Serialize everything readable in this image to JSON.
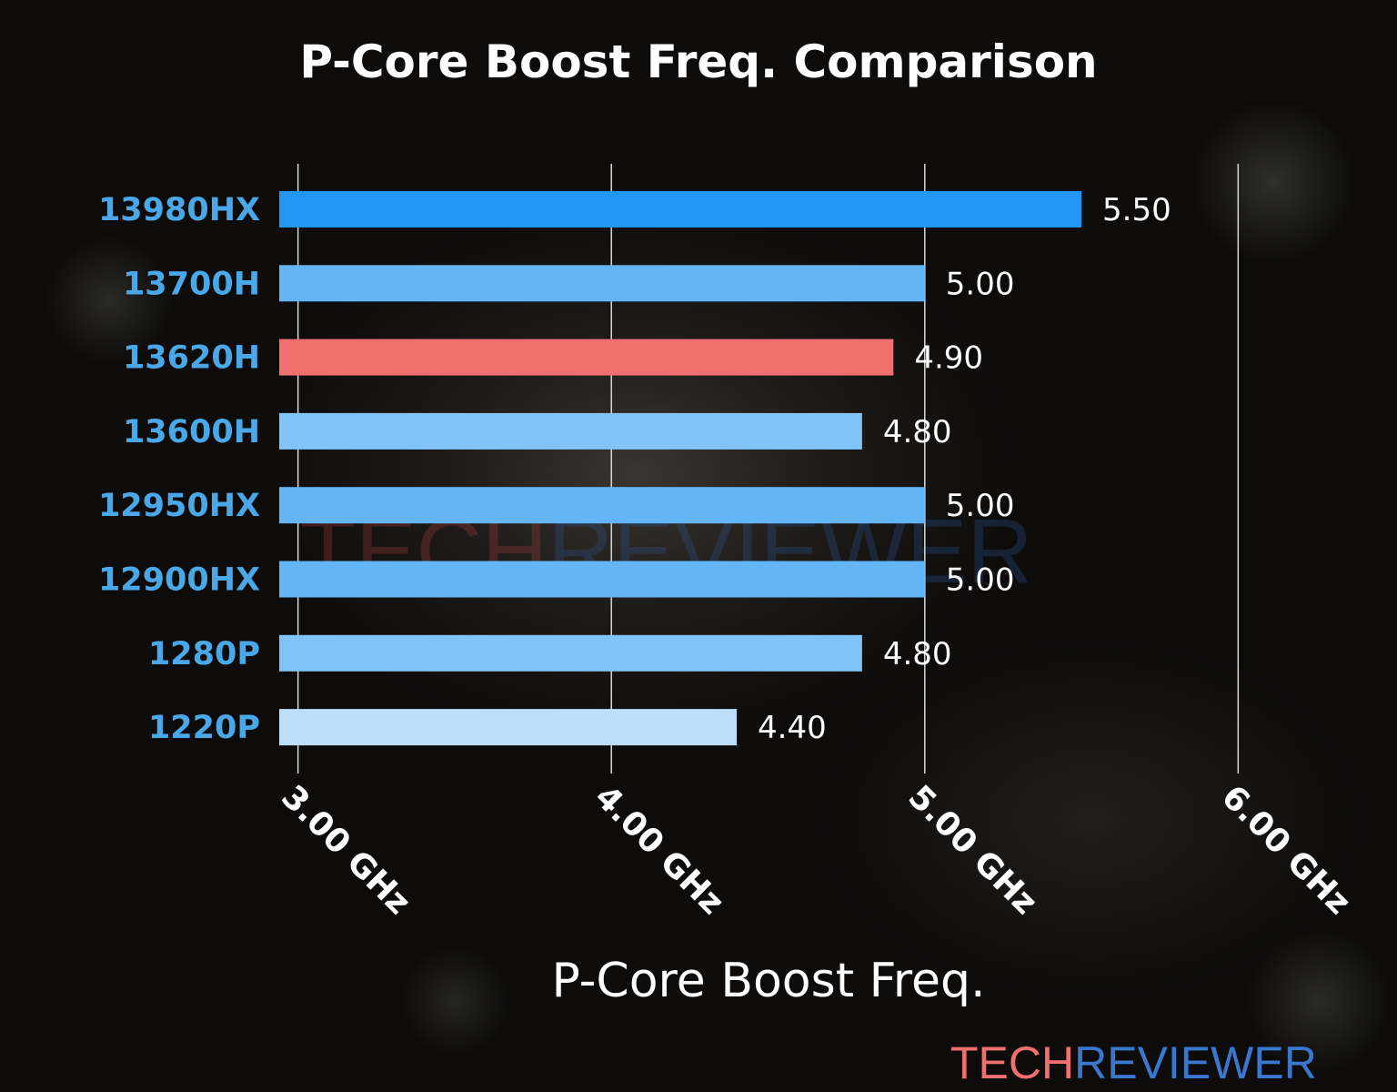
{
  "chart_data": {
    "type": "bar",
    "orientation": "horizontal",
    "title": "P-Core Boost Freq. Comparison",
    "xlabel": "P-Core Boost Freq.",
    "ylabel": "",
    "categories": [
      "13980HX",
      "13700H",
      "13620H",
      "13600H",
      "12950HX",
      "12900HX",
      "1280P",
      "1220P"
    ],
    "values": [
      5.5,
      5.0,
      4.9,
      4.8,
      5.0,
      5.0,
      4.8,
      4.4
    ],
    "value_labels": [
      "5.50",
      "5.00",
      "4.90",
      "4.80",
      "5.00",
      "5.00",
      "4.80",
      "4.40"
    ],
    "bar_colors": [
      "#2196f3",
      "#64b5f6",
      "#f07070",
      "#82c4f8",
      "#64b5f6",
      "#64b5f6",
      "#82c4f8",
      "#bbdefb"
    ],
    "xticks": [
      3,
      4,
      5,
      6
    ],
    "xtick_labels": [
      "3.00 GHz",
      "4.00 GHz",
      "5.00 GHz",
      "6.00 GHz"
    ],
    "xlim": [
      2.94,
      6.06
    ],
    "grid": "vertical",
    "legend": "none",
    "category_label_color": "#4aa8e8"
  },
  "watermark": {
    "part1": "TECH",
    "part2": "REVIEWER",
    "color1": "#f07070",
    "color2": "#3a78d0"
  }
}
